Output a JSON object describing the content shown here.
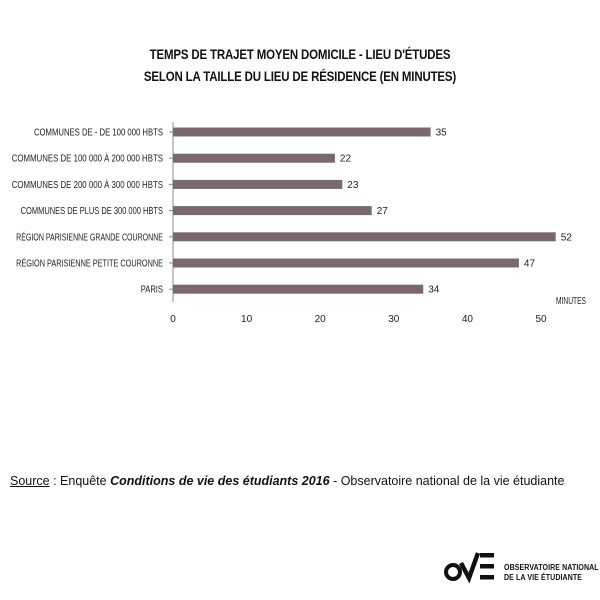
{
  "chart_data": {
    "type": "bar",
    "orientation": "horizontal",
    "title": [
      "TEMPS DE TRAJET MOYEN DOMICILE - LIEU D'ÉTUDES",
      "SELON LA TAILLE DU LIEU DE RÉSIDENCE (EN MINUTES)"
    ],
    "categories": [
      "COMMUNES DE - DE 100 000 HBTS",
      "COMMUNES DE 100 000 À 200 000 HBTS",
      "COMMUNES DE 200 000 À 300 000 HBTS",
      "COMMUNES DE PLUS DE 300 000 HBTS",
      "RÉGION PARISIENNE GRANDE COURONNE",
      "RÉGION PARISIENNE PETITE COURONNE",
      "PARIS"
    ],
    "values": [
      35,
      22,
      23,
      27,
      52,
      47,
      34
    ],
    "xlabel": "MINUTES",
    "xlim": [
      0,
      50
    ],
    "xticks": [
      0,
      10,
      20,
      30,
      40,
      50
    ],
    "bar_color": "#7a6870",
    "grid": false
  },
  "source": {
    "label": "Source",
    "prefix": " : Enquête ",
    "emphasis": "Conditions de vie des étudiants 2016",
    "suffix": " - Observatoire national de la vie étudiante"
  },
  "logo": {
    "line1": "OBSERVATOIRE NATIONAL",
    "line2": "DE LA VIE ÉTUDIANTE"
  }
}
